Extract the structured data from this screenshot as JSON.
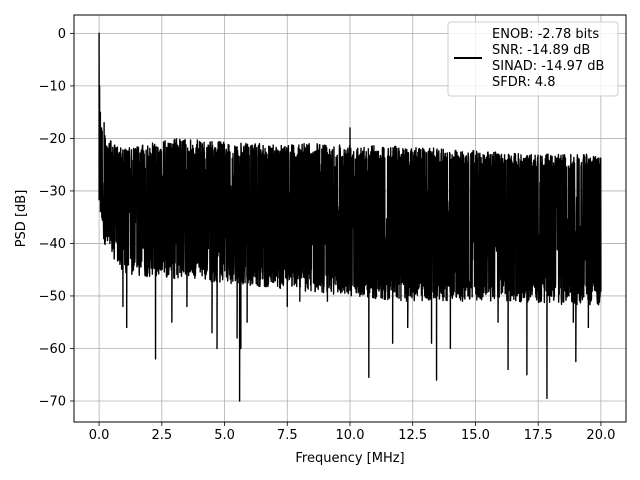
{
  "chart_data": {
    "type": "line",
    "title": "",
    "xlabel": "Frequency [MHz]",
    "ylabel": "PSD [dB]",
    "xlim": [
      -1.0,
      21.0
    ],
    "ylim": [
      -74.0,
      3.5
    ],
    "xticks": [
      0.0,
      2.5,
      5.0,
      7.5,
      10.0,
      12.5,
      15.0,
      17.5,
      20.0
    ],
    "xtick_labels": [
      "0.0",
      "2.5",
      "5.0",
      "7.5",
      "10.0",
      "12.5",
      "15.0",
      "17.5",
      "20.0"
    ],
    "yticks": [
      0,
      -10,
      -20,
      -30,
      -40,
      -50,
      -60,
      -70
    ],
    "ytick_labels": [
      "0",
      "−10",
      "−20",
      "−30",
      "−40",
      "−50",
      "−60",
      "−70"
    ],
    "grid": true,
    "legend_position": "top-right",
    "legend_lines": [
      "ENOB: -2.78 bits",
      "SNR: -14.89 dB",
      "SINAD: -14.97 dB",
      "SFDR: 4.8"
    ],
    "series": [
      {
        "color": "#000000",
        "dense": true,
        "x_range": [
          0.0,
          20.0
        ],
        "upper_envelope": [
          [
            0.0,
            -16
          ],
          [
            0.3,
            -20
          ],
          [
            1.0,
            -22
          ],
          [
            3.0,
            -20
          ],
          [
            6.0,
            -21
          ],
          [
            10.0,
            -21
          ],
          [
            14.0,
            -22
          ],
          [
            17.0,
            -23
          ],
          [
            20.0,
            -23
          ]
        ],
        "lower_envelope": [
          [
            0.0,
            -33
          ],
          [
            0.2,
            -40
          ],
          [
            1.0,
            -46
          ],
          [
            4.0,
            -47
          ],
          [
            8.0,
            -49
          ],
          [
            12.0,
            -51
          ],
          [
            16.0,
            -51
          ],
          [
            20.0,
            -52
          ]
        ],
        "peaks": [
          [
            0.0,
            0
          ],
          [
            0.02,
            -10
          ],
          [
            0.05,
            -15
          ],
          [
            0.1,
            -18
          ],
          [
            0.2,
            -17
          ],
          [
            10.0,
            -18
          ]
        ],
        "dips": [
          [
            0.95,
            -52
          ],
          [
            1.1,
            -56
          ],
          [
            2.25,
            -62
          ],
          [
            2.9,
            -55
          ],
          [
            3.5,
            -52
          ],
          [
            4.5,
            -57
          ],
          [
            4.7,
            -60
          ],
          [
            5.5,
            -58
          ],
          [
            5.6,
            -70
          ],
          [
            5.65,
            -60
          ],
          [
            5.9,
            -55
          ],
          [
            7.5,
            -52
          ],
          [
            8.0,
            -51
          ],
          [
            9.1,
            -51
          ],
          [
            10.75,
            -65.5
          ],
          [
            11.7,
            -59
          ],
          [
            12.3,
            -56
          ],
          [
            13.25,
            -59
          ],
          [
            13.45,
            -66
          ],
          [
            14.0,
            -60
          ],
          [
            15.9,
            -55
          ],
          [
            16.3,
            -64
          ],
          [
            17.05,
            -65
          ],
          [
            17.85,
            -69.5
          ],
          [
            18.9,
            -55
          ],
          [
            19.0,
            -62.5
          ],
          [
            19.5,
            -56
          ]
        ]
      }
    ]
  }
}
